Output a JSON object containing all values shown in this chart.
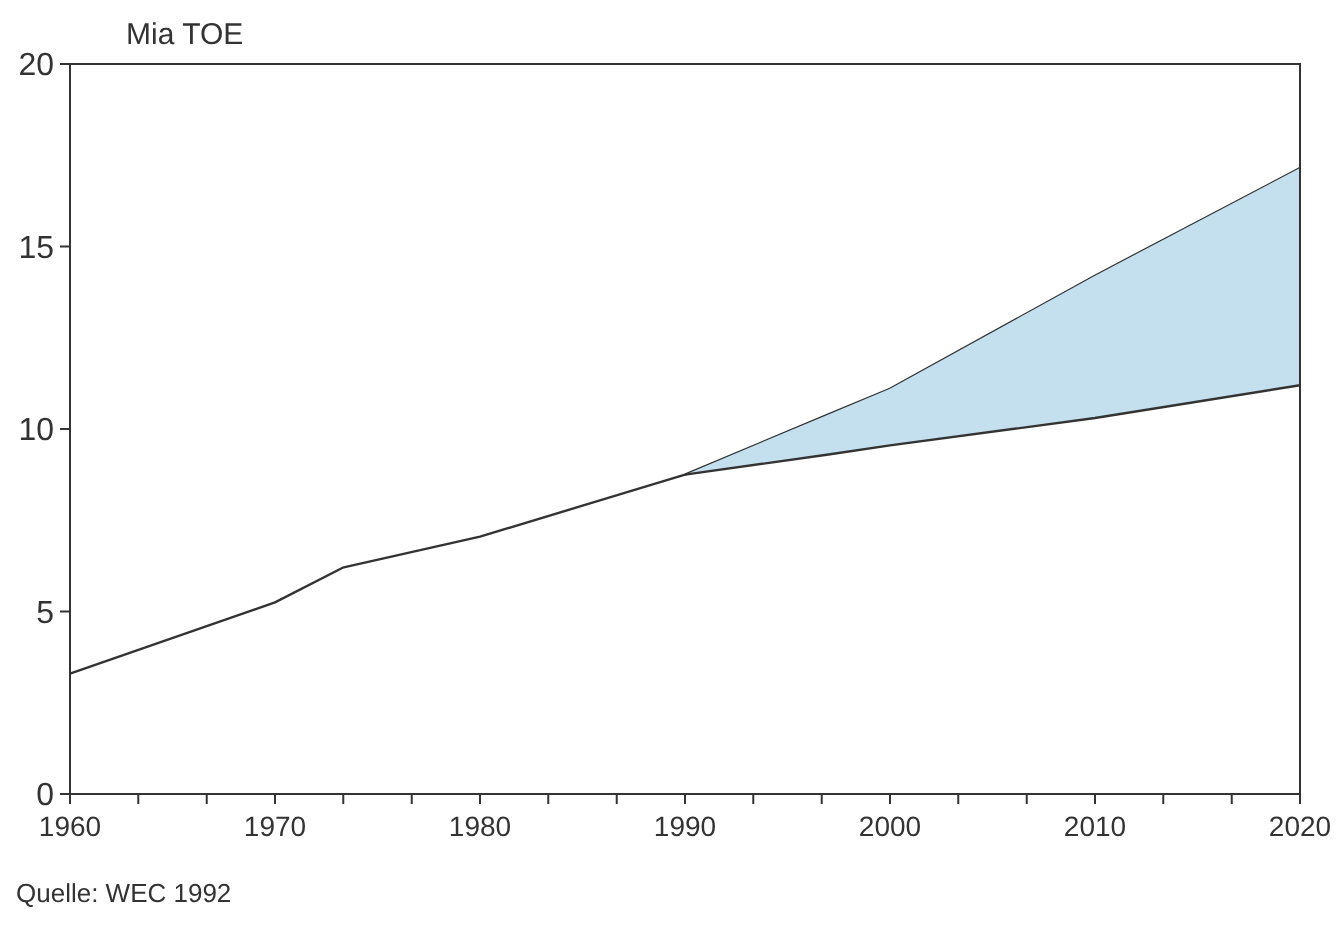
{
  "chart_data": {
    "type": "line",
    "ylabel": "Mia TOE",
    "annotations": [
      "Quelle: WEC 1992"
    ],
    "xlim": [
      1960,
      2020
    ],
    "ylim": [
      0,
      20
    ],
    "xticks": [
      1960,
      {
        "value": 1963.33,
        "label": null
      },
      {
        "value": 1966.67,
        "label": null
      },
      1970,
      {
        "value": 1973.33,
        "label": null
      },
      {
        "value": 1976.67,
        "label": null
      },
      1980,
      {
        "value": 1983.33,
        "label": null
      },
      {
        "value": 1986.67,
        "label": null
      },
      1990,
      {
        "value": 1993.33,
        "label": null
      },
      {
        "value": 1996.67,
        "label": null
      },
      2000,
      {
        "value": 2003.33,
        "label": null
      },
      {
        "value": 2006.67,
        "label": null
      },
      2010,
      {
        "value": 2013.33,
        "label": null
      },
      {
        "value": 2016.67,
        "label": null
      },
      2020
    ],
    "yticks": [
      0,
      5,
      10,
      15,
      20
    ],
    "grid": false,
    "marker": "none",
    "line_style": "solid",
    "series": [
      {
        "color": "#333333",
        "x": [
          1960,
          1970,
          1973.3,
          1980,
          1985,
          1990,
          1997,
          2000,
          2010,
          2020
        ],
        "values": [
          3.3,
          5.25,
          6.2,
          7.05,
          7.9,
          8.75,
          10.4,
          11.1,
          14.2,
          17.15
        ]
      },
      {
        "color": "#333333",
        "x": [
          1990,
          1997,
          2000,
          2010,
          2020
        ],
        "values": [
          8.75,
          9.3,
          9.55,
          10.3,
          11.2
        ],
        "lower": [
          8.75,
          9.3,
          9.55,
          10.3,
          11.2
        ],
        "upper": [
          8.75,
          10.4,
          11.1,
          14.2,
          17.15
        ]
      }
    ]
  }
}
